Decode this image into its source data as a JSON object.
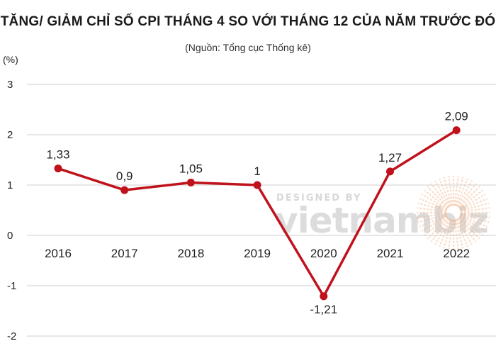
{
  "chart_data": {
    "type": "line",
    "title": "TĂNG/ GIẢM CHỈ SỐ CPI THÁNG 4  SO VỚI THÁNG 12 CỦA NĂM TRƯỚC ĐÓ",
    "subtitle": "(Nguồn: Tổng cục Thống kê)",
    "ylabel": "(%)",
    "xlabel": "",
    "categories": [
      "2016",
      "2017",
      "2018",
      "2019",
      "2020",
      "2021",
      "2022"
    ],
    "series": [
      {
        "values": [
          1.33,
          0.9,
          1.05,
          1,
          -1.21,
          1.27,
          2.09
        ],
        "labels": [
          "1,33",
          "0,9",
          "1,05",
          "1",
          "-1,21",
          "1,27",
          "2,09"
        ],
        "color": "#c0121c"
      }
    ],
    "ylim": [
      -2,
      3
    ],
    "yticks": [
      3,
      2,
      1,
      0,
      -1,
      -2
    ],
    "ytick_labels": [
      "3",
      "2",
      "1",
      "0",
      "-1",
      "-2"
    ],
    "grid": true,
    "gridline_color": "#cfcfcf",
    "legend": "none"
  },
  "watermark": {
    "top_text": "DESIGNED BY",
    "brand_text": "vietnambiz",
    "accent_color": "#f2b48a"
  }
}
